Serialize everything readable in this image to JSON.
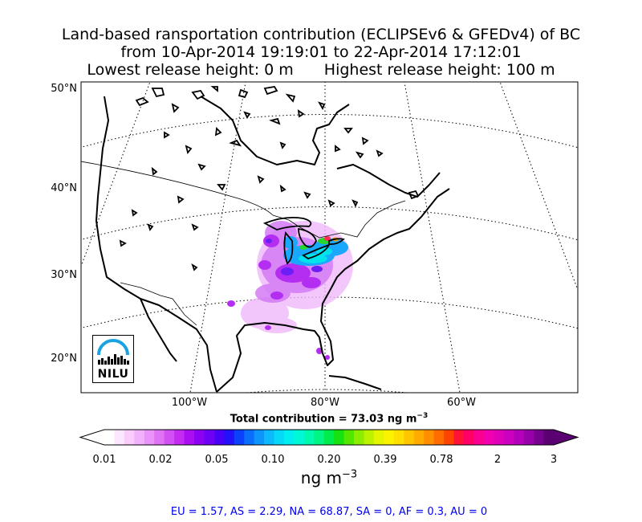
{
  "title": {
    "line1": "Land-based ransportation contribution (ECLIPSEv6 & GFEDv4) of BC",
    "line2": "from 10-Apr-2014 19:19:01 to 22-Apr-2014 17:12:01",
    "line3_left": "Lowest release height: 0 m",
    "line3_right": "Highest release height: 100 m"
  },
  "map": {
    "lat_labels": [
      "50°N",
      "40°N",
      "30°N",
      "20°N"
    ],
    "lon_labels": [
      "100°W",
      "80°W",
      "60°W"
    ],
    "total_label": "Total contribution = 73.03 ng m",
    "total_sup": "−3",
    "logo_text": "NILU",
    "logo_color": "#1aa3e0"
  },
  "colorbar": {
    "colors": [
      "#ffffff",
      "#fde6ff",
      "#f9ccfd",
      "#f2b1fb",
      "#ea93f8",
      "#e072f5",
      "#d24ff3",
      "#c32cf0",
      "#ab0ef0",
      "#8e00f2",
      "#6e00f5",
      "#4a00f8",
      "#2211fa",
      "#0c40fb",
      "#0b6dfb",
      "#0d95fb",
      "#0eb9fb",
      "#08d8f7",
      "#00eef0",
      "#00f8d5",
      "#00fab0",
      "#00f582",
      "#00eb4d",
      "#17e10f",
      "#55e600",
      "#8ced00",
      "#bcf200",
      "#e4f500",
      "#fbf200",
      "#ffdf00",
      "#ffc600",
      "#ffac00",
      "#ff8e00",
      "#ff6c00",
      "#ff4300",
      "#ff1236",
      "#ff0066",
      "#fb0090",
      "#f000ae",
      "#e000ba",
      "#cc00bf",
      "#b400ba",
      "#9800aa",
      "#780090",
      "#5a0070"
    ],
    "ticks": [
      "0.01",
      "0.02",
      "0.05",
      "0.10",
      "0.20",
      "0.39",
      "0.78",
      "2",
      "3"
    ],
    "unit_label": "ng m",
    "unit_sup": "−3"
  },
  "footer": "EU = 1.57,  AS = 2.29,  NA = 68.87,  SA = 0,  AF = 0.3,  AU = 0"
}
